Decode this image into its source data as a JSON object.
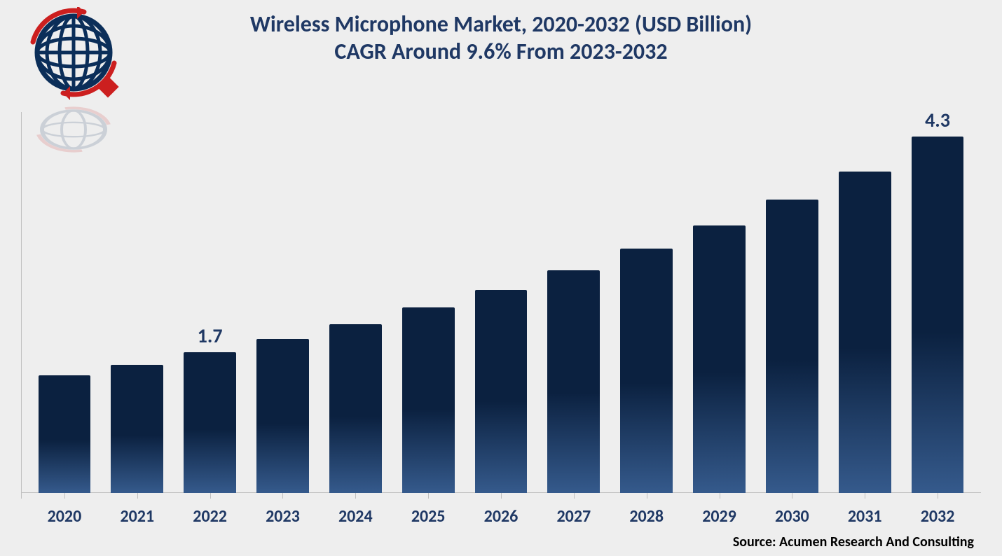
{
  "background_color": "#eeeeee",
  "title": {
    "line1": "Wireless Microphone Market, 2020-2032 (USD Billion)",
    "line2": "CAGR Around 9.6% From 2023-2032",
    "color": "#1f3864",
    "fontsize": 32,
    "fontweight": 700
  },
  "source": {
    "text": "Source: Acumen Research And Consulting",
    "fontsize": 20,
    "color": "#000000"
  },
  "logo": {
    "globe_stroke": "#0b2e59",
    "accent_color": "#cc1f1f",
    "reflection_opacity": 0.15
  },
  "chart": {
    "type": "bar",
    "categories": [
      "2020",
      "2021",
      "2022",
      "2023",
      "2024",
      "2025",
      "2026",
      "2027",
      "2028",
      "2029",
      "2030",
      "2031",
      "2032"
    ],
    "values": [
      1.42,
      1.55,
      1.7,
      1.86,
      2.04,
      2.24,
      2.45,
      2.69,
      2.95,
      3.23,
      3.54,
      3.88,
      4.3
    ],
    "value_labels": {
      "2022": "1.7",
      "2032": "4.3"
    },
    "ylim_max": 4.6,
    "bar_gradient_top": "#0b2140",
    "bar_gradient_bottom": "#355a8c",
    "bar_width_pct": 72,
    "axis_color": "#bfbfbf",
    "xlabel_color": "#1f3864",
    "xlabel_fontsize": 24,
    "xlabel_fontweight": 700,
    "value_label_color": "#1f3864",
    "value_label_fontsize": 28,
    "value_label_fontweight": 700
  }
}
